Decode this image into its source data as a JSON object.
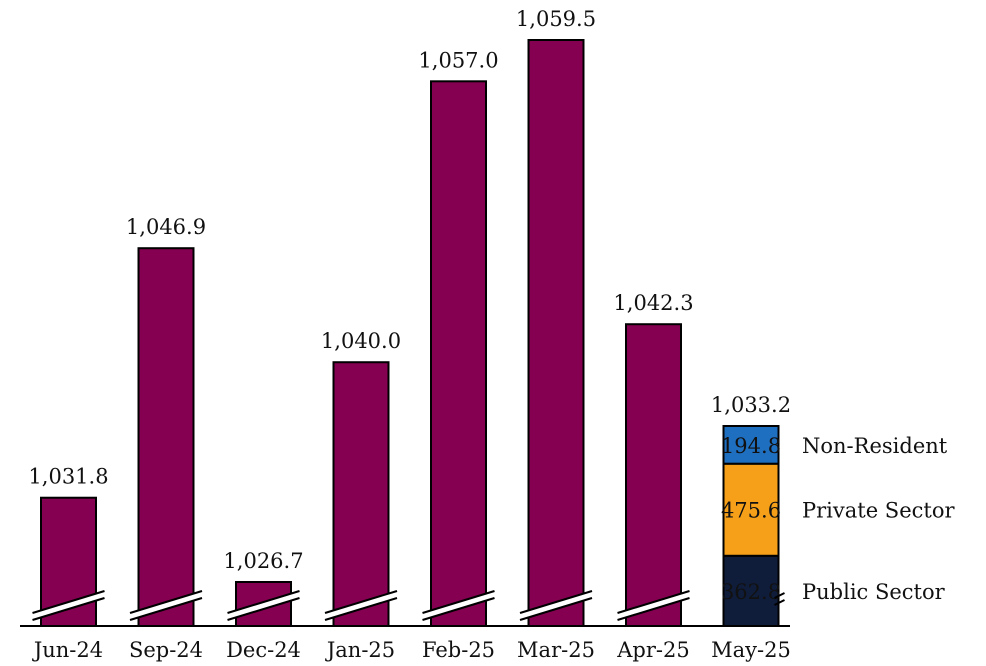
{
  "chart_data": {
    "type": "bar",
    "categories": [
      "Jun-24",
      "Sep-24",
      "Dec-24",
      "Jan-25",
      "Feb-25",
      "Mar-25",
      "Apr-25",
      "May-25"
    ],
    "values": [
      1031.8,
      1046.9,
      1026.7,
      1040.0,
      1057.0,
      1059.5,
      1042.3,
      1033.2
    ],
    "value_labels": [
      "1,031.8",
      "1,046.9",
      "1,026.7",
      "1,040.0",
      "1,057.0",
      "1,059.5",
      "1,042.3",
      "1,033.2"
    ],
    "y_axis_broken": true,
    "breakdown": {
      "category": "May-25",
      "segments": [
        {
          "name": "Public Sector",
          "value": 362.8,
          "label": "362.8",
          "color": "#0f1c3a"
        },
        {
          "name": "Private Sector",
          "value": 475.6,
          "label": "475.6",
          "color": "#f6a01a"
        },
        {
          "name": "Non-Resident",
          "value": 194.8,
          "label": "194.8",
          "color": "#1f6fc0"
        }
      ]
    },
    "colors": {
      "bar": "#850050",
      "outline": "#000000"
    }
  }
}
